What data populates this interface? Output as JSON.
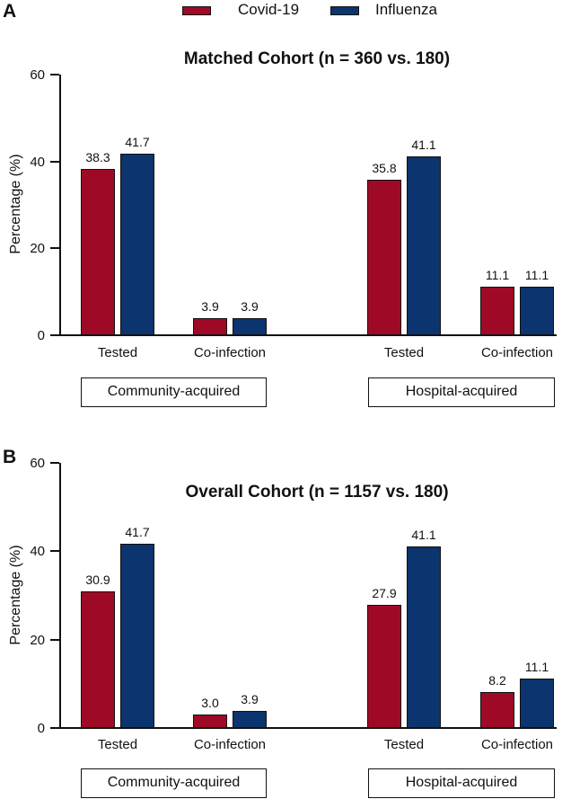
{
  "legend": {
    "items": [
      {
        "label": "Covid-19",
        "color": "#9e0a26"
      },
      {
        "label": "Influenza",
        "color": "#0c346e"
      }
    ]
  },
  "chart_data": [
    {
      "type": "bar",
      "panel": "A",
      "title": "Matched Cohort (n = 360 vs. 180)",
      "ylabel": "Percentage (%)",
      "ylim": [
        0,
        60
      ],
      "yticks": [
        0,
        20,
        40,
        60
      ],
      "grid": false,
      "legend_position": "top-center",
      "groups": [
        {
          "label": "Community-acquired",
          "categories": [
            "Tested",
            "Co-infection"
          ],
          "series": [
            {
              "name": "Covid-19",
              "values": [
                38.3,
                3.9
              ]
            },
            {
              "name": "Influenza",
              "values": [
                41.7,
                3.9
              ]
            }
          ]
        },
        {
          "label": "Hospital-acquired",
          "categories": [
            "Tested",
            "Co-infection"
          ],
          "series": [
            {
              "name": "Covid-19",
              "values": [
                35.8,
                11.1
              ]
            },
            {
              "name": "Influenza",
              "values": [
                41.1,
                11.1
              ]
            }
          ]
        }
      ]
    },
    {
      "type": "bar",
      "panel": "B",
      "title": "Overall Cohort (n = 1157 vs. 180)",
      "ylabel": "Percentage (%)",
      "ylim": [
        0,
        60
      ],
      "yticks": [
        0,
        20,
        40,
        60
      ],
      "grid": false,
      "groups": [
        {
          "label": "Community-acquired",
          "categories": [
            "Tested",
            "Co-infection"
          ],
          "series": [
            {
              "name": "Covid-19",
              "values": [
                30.9,
                3.0
              ]
            },
            {
              "name": "Influenza",
              "values": [
                41.7,
                3.9
              ]
            }
          ]
        },
        {
          "label": "Hospital-acquired",
          "categories": [
            "Tested",
            "Co-infection"
          ],
          "series": [
            {
              "name": "Covid-19",
              "values": [
                27.9,
                8.2
              ]
            },
            {
              "name": "Influenza",
              "values": [
                41.1,
                11.1
              ]
            }
          ]
        }
      ]
    }
  ]
}
